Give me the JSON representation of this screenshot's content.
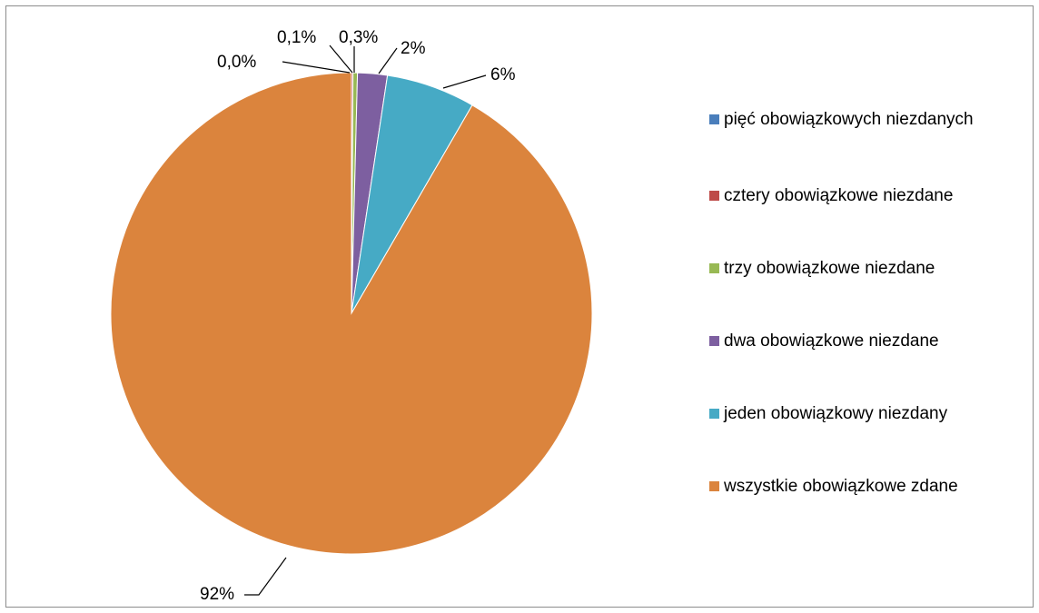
{
  "chart_data": {
    "type": "pie",
    "title": "",
    "categories": [
      "pięć obowiązkowych niezdanych",
      "cztery obowiązkowe niezdane",
      "trzy obowiązkowe niezdane",
      "dwa obowiązkowe niezdane",
      "jeden obowiązkowy niezdany",
      "wszystkie obowiązkowe zdane"
    ],
    "values": [
      0.0,
      0.1,
      0.3,
      2,
      6,
      92
    ],
    "data_labels": [
      "0,0%",
      "0,1%",
      "0,3%",
      "2%",
      "6%",
      "92%"
    ],
    "colors": [
      "#4a7ebb",
      "#be4b48",
      "#98b954",
      "#7d5fa0",
      "#46aac5",
      "#db843d"
    ],
    "legend_placement": "right"
  }
}
